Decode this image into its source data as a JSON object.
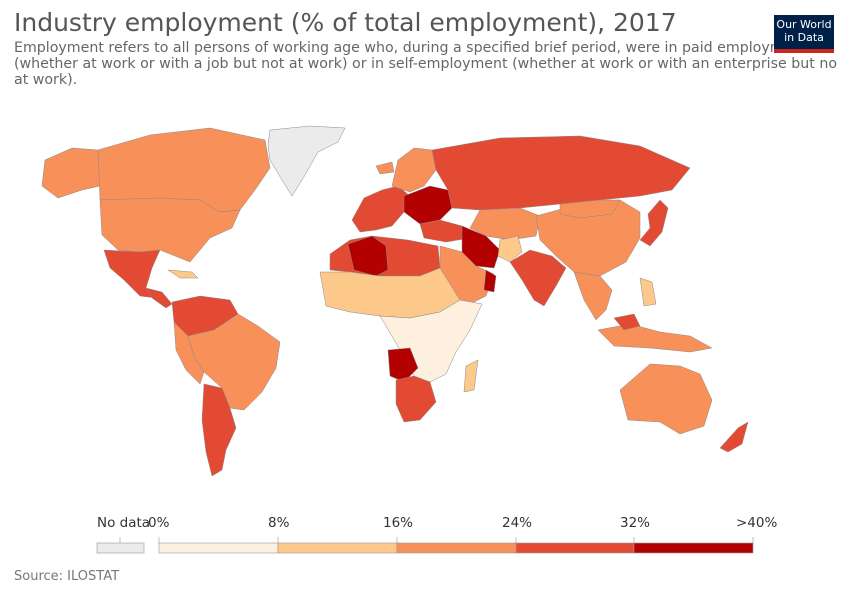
{
  "header": {
    "title": "Industry employment (% of total employment), 2017",
    "subtitle": "Employment refers to all persons of working age who, during a specified brief period, were in paid employment (whether at work or with a job but not at work) or in self-employment (whether at work or with an enterprise but no at work).",
    "logo_line1": "Our World",
    "logo_line2": "in Data"
  },
  "legend": {
    "no_data_label": "No data",
    "ticks": [
      "0%",
      "8%",
      "16%",
      "24%",
      "32%",
      ">40%"
    ],
    "colors": [
      "#fdf0de",
      "#fdc98b",
      "#f8905a",
      "#e34a33",
      "#b30000"
    ],
    "no_data_color": "#ebebeb"
  },
  "footer": {
    "source": "Source: ILOSTAT"
  }
}
